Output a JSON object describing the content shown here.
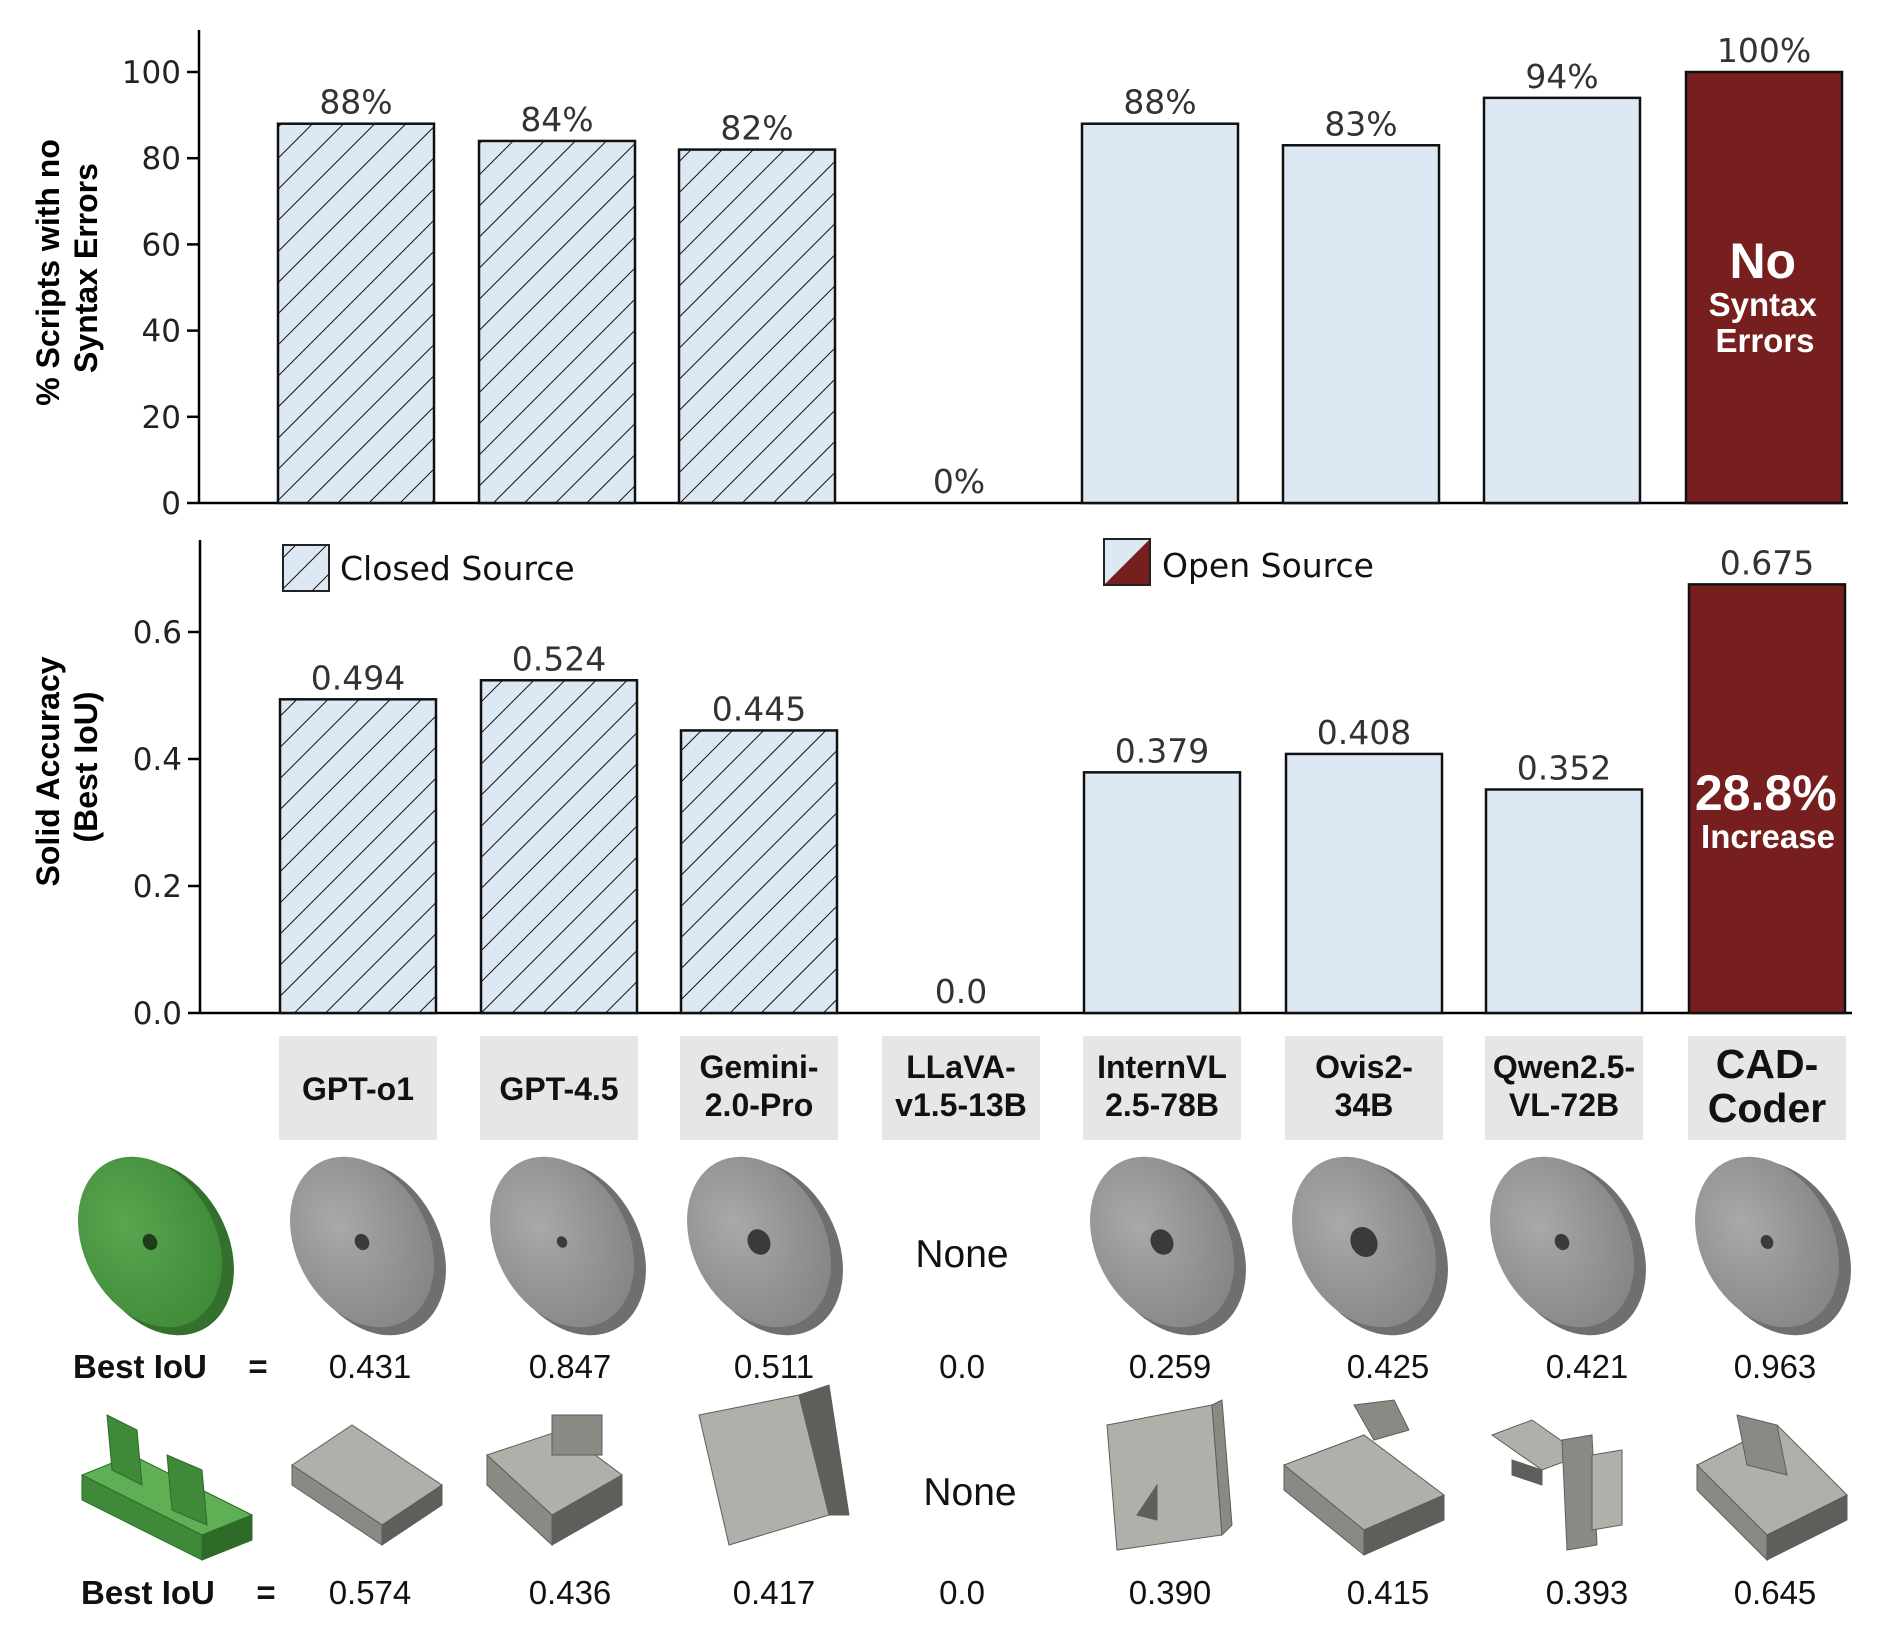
{
  "colors": {
    "bar_fill": "#dce9f5",
    "highlight": "#761f1e",
    "hatch": "#111111",
    "label_box": "#e6e6e6",
    "gt_green": "#4e9a44",
    "part_gray": "#8e8e90"
  },
  "legend": {
    "closed_label": "Closed Source",
    "open_label": "Open Source"
  },
  "models": [
    {
      "name": "GPT-o1",
      "group": "closed"
    },
    {
      "name": "GPT-4.5",
      "group": "closed"
    },
    {
      "name": "Gemini-2.0-Pro",
      "group": "closed"
    },
    {
      "name": "LLaVA-v1.5-13B",
      "group": "open"
    },
    {
      "name": "InternVL 2.5-78B",
      "group": "open"
    },
    {
      "name": "Ovis2-34B",
      "group": "open"
    },
    {
      "name": "Qwen2.5-VL-72B",
      "group": "open"
    },
    {
      "name": "CAD-Coder",
      "group": "open"
    }
  ],
  "model_labels": [
    [
      "GPT-o1"
    ],
    [
      "GPT-4.5"
    ],
    [
      "Gemini-",
      "2.0-Pro"
    ],
    [
      "LLaVA-",
      "v1.5-13B"
    ],
    [
      "InternVL",
      "2.5-78B"
    ],
    [
      "Ovis2-",
      "34B"
    ],
    [
      "Qwen2.5-",
      "VL-72B"
    ],
    [
      "CAD-",
      "Coder"
    ]
  ],
  "chart_data": [
    {
      "type": "bar",
      "ylabel": "% Scripts with no Syntax Errors",
      "ylim": [
        0,
        110
      ],
      "yticks": [
        0,
        20,
        40,
        60,
        80,
        100
      ],
      "categories": [
        "GPT-o1",
        "GPT-4.5",
        "Gemini-2.0-Pro",
        "LLaVA-v1.5-13B",
        "InternVL 2.5-78B",
        "Ovis2-34B",
        "Qwen2.5-VL-72B",
        "CAD-Coder"
      ],
      "values": [
        88,
        84,
        82,
        0,
        88,
        83,
        94,
        100
      ],
      "data_labels": [
        "88%",
        "84%",
        "82%",
        "0%",
        "88%",
        "83%",
        "94%",
        "100%"
      ],
      "annotation": [
        "No",
        "Syntax",
        "Errors"
      ]
    },
    {
      "type": "bar",
      "ylabel": "Solid Accuracy (Best IoU)",
      "ylim": [
        0,
        0.75
      ],
      "yticks": [
        "0.0",
        "0.2",
        "0.4",
        "0.6"
      ],
      "categories": [
        "GPT-o1",
        "GPT-4.5",
        "Gemini-2.0-Pro",
        "LLaVA-v1.5-13B",
        "InternVL 2.5-78B",
        "Ovis2-34B",
        "Qwen2.5-VL-72B",
        "CAD-Coder"
      ],
      "values": [
        0.494,
        0.524,
        0.445,
        0.0,
        0.379,
        0.408,
        0.352,
        0.675
      ],
      "data_labels": [
        "0.494",
        "0.524",
        "0.445",
        "0.0",
        "0.379",
        "0.408",
        "0.352",
        "0.675"
      ],
      "annotation": [
        "28.8%",
        "Increase"
      ]
    }
  ],
  "examples": [
    {
      "label": "Best IoU",
      "equals": "=",
      "shape": "disc",
      "scores": [
        "0.431",
        "0.847",
        "0.511",
        "0.0",
        "0.259",
        "0.425",
        "0.421",
        "0.963"
      ],
      "none_text": "None"
    },
    {
      "label": "Best IoU",
      "equals": "=",
      "shape": "block",
      "scores": [
        "0.574",
        "0.436",
        "0.417",
        "0.0",
        "0.390",
        "0.415",
        "0.393",
        "0.645"
      ],
      "none_text": "None"
    }
  ]
}
